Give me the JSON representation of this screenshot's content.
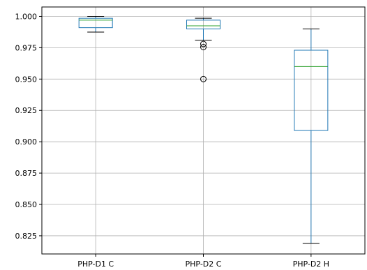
{
  "chart_data": {
    "type": "box",
    "categories": [
      "PHP-D1  C",
      "PHP-D2  C",
      "PHP-D2  H"
    ],
    "boxes": [
      {
        "whisker_low": 0.9875,
        "q1": 0.991,
        "median": 0.997,
        "q3": 0.9985,
        "whisker_high": 1.0,
        "outliers": []
      },
      {
        "whisker_low": 0.981,
        "q1": 0.99,
        "median": 0.9925,
        "q3": 0.997,
        "whisker_high": 0.9985,
        "outliers": [
          0.978,
          0.9755,
          0.95
        ]
      },
      {
        "whisker_low": 0.819,
        "q1": 0.909,
        "median": 0.96,
        "q3": 0.973,
        "whisker_high": 0.99,
        "outliers": []
      }
    ],
    "y_ticks": [
      "1.000",
      "0.975",
      "0.950",
      "0.925",
      "0.900",
      "0.875",
      "0.850",
      "0.825"
    ],
    "y_tick_values": [
      1.0,
      0.975,
      0.95,
      0.925,
      0.9,
      0.875,
      0.85,
      0.825
    ],
    "ylim": [
      0.8105,
      1.0075
    ],
    "grid": true,
    "colors": {
      "box": "#1f77b4",
      "median": "#2ca02c",
      "whisker": "#1f77b4",
      "cap": "#000000",
      "grid": "#b0b0b0",
      "outlier": "#000000"
    }
  }
}
